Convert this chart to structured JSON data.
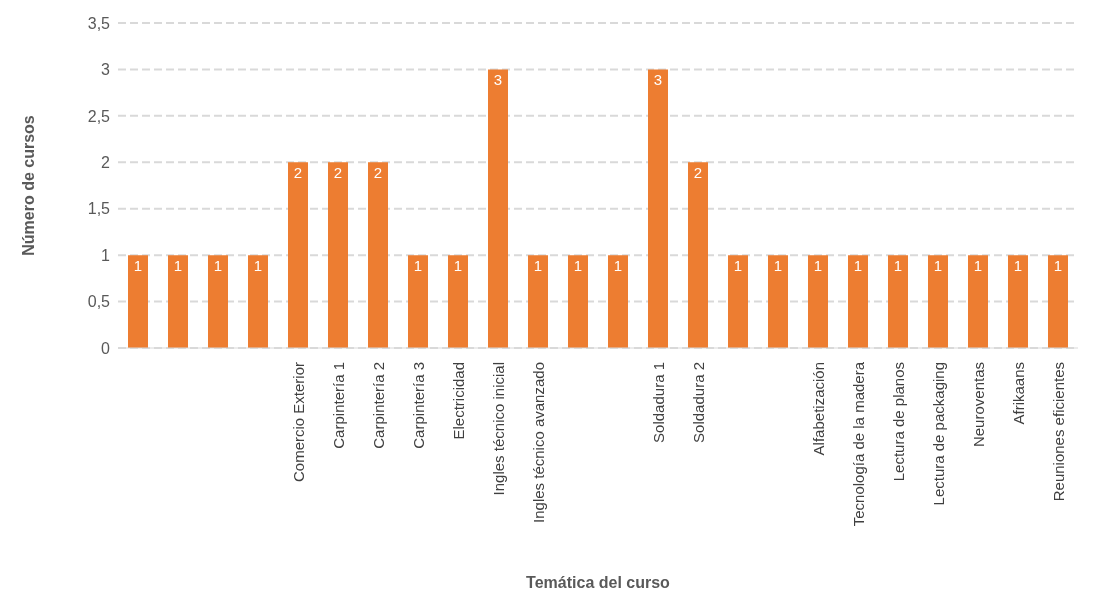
{
  "chart_data": {
    "type": "bar",
    "xlabel": "Temática del curso",
    "ylabel": "Número de cursos",
    "categories": [
      null,
      null,
      null,
      null,
      "Comercio Exterior",
      "Carpintería 1",
      "Carpintería 2",
      "Carpintería 3",
      "Electricidad",
      "Ingles técnico inicial",
      "Ingles técnico avanzado",
      null,
      null,
      "Soldadura 1",
      "Soldadura 2",
      null,
      null,
      "Alfabetización",
      "Tecnología de la madera",
      "Lectura de planos",
      "Lectura de packaging",
      "Neuroventas",
      "Afrikaans",
      "Reuniones eficientes"
    ],
    "values": [
      1,
      1,
      1,
      1,
      2,
      2,
      2,
      1,
      1,
      3,
      1,
      1,
      1,
      3,
      2,
      1,
      1,
      1,
      1,
      1,
      1,
      1,
      1,
      1
    ],
    "color": "#ed7d31",
    "data_labels": true,
    "ylim": [
      0,
      3.5
    ],
    "yticks": [
      0,
      {
        "value": 0.5,
        "label": "0,5"
      },
      1,
      {
        "value": 1.5,
        "label": "1,5"
      },
      2,
      {
        "value": 2.5,
        "label": "2,5"
      },
      3,
      {
        "value": 3.5,
        "label": "3,5"
      }
    ],
    "grid": "y"
  }
}
